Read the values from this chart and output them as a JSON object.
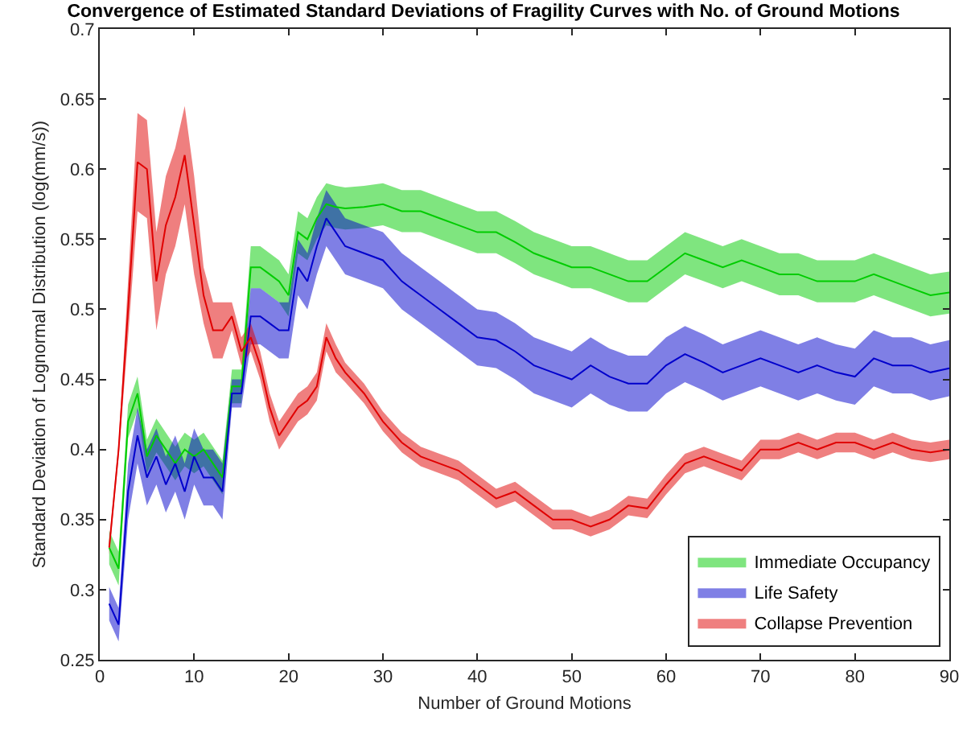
{
  "chart_data": {
    "type": "line",
    "title": "Convergence of Estimated Standard Deviations of Fragility Curves with No. of Ground Motions",
    "xlabel": "Number of Ground Motions",
    "ylabel": "Standard Deviation of Lognormal Distribution (log(mm/s))",
    "x": [
      1,
      2,
      3,
      4,
      5,
      6,
      7,
      8,
      9,
      10,
      11,
      12,
      13,
      14,
      15,
      16,
      17,
      18,
      19,
      20,
      21,
      22,
      23,
      24,
      25,
      26,
      28,
      30,
      32,
      34,
      36,
      38,
      40,
      42,
      44,
      46,
      48,
      50,
      52,
      54,
      56,
      58,
      60,
      62,
      64,
      66,
      68,
      70,
      72,
      74,
      76,
      78,
      80,
      82,
      84,
      86,
      88,
      90
    ],
    "xlim": [
      0,
      90
    ],
    "xticks": [
      0,
      10,
      20,
      30,
      40,
      50,
      60,
      70,
      80,
      90
    ],
    "ylim": [
      0.25,
      0.7
    ],
    "yticks": [
      0.25,
      0.3,
      0.35,
      0.4,
      0.45,
      0.5,
      0.55,
      0.6,
      0.65,
      0.7
    ],
    "grid": false,
    "legend": "bottom right",
    "series": [
      {
        "name": "Immediate Occupancy",
        "color": "#00cc00",
        "values": [
          0.33,
          0.315,
          0.42,
          0.44,
          0.395,
          0.41,
          0.4,
          0.39,
          0.4,
          0.395,
          0.4,
          0.39,
          0.38,
          0.445,
          0.445,
          0.53,
          0.53,
          0.525,
          0.52,
          0.51,
          0.555,
          0.55,
          0.565,
          0.575,
          0.573,
          0.572,
          0.573,
          0.575,
          0.57,
          0.57,
          0.565,
          0.56,
          0.555,
          0.555,
          0.548,
          0.54,
          0.535,
          0.53,
          0.53,
          0.525,
          0.52,
          0.52,
          0.53,
          0.54,
          0.535,
          0.53,
          0.535,
          0.53,
          0.525,
          0.525,
          0.52,
          0.52,
          0.52,
          0.525,
          0.52,
          0.515,
          0.51,
          0.512
        ],
        "lower": [
          0.318,
          0.303,
          0.408,
          0.428,
          0.383,
          0.398,
          0.388,
          0.378,
          0.388,
          0.383,
          0.388,
          0.378,
          0.368,
          0.433,
          0.433,
          0.515,
          0.515,
          0.51,
          0.505,
          0.495,
          0.54,
          0.535,
          0.55,
          0.56,
          0.558,
          0.557,
          0.558,
          0.56,
          0.555,
          0.555,
          0.55,
          0.545,
          0.54,
          0.54,
          0.533,
          0.525,
          0.52,
          0.515,
          0.515,
          0.51,
          0.505,
          0.505,
          0.515,
          0.525,
          0.52,
          0.515,
          0.52,
          0.515,
          0.51,
          0.51,
          0.505,
          0.505,
          0.505,
          0.51,
          0.505,
          0.5,
          0.495,
          0.497
        ],
        "upper": [
          0.342,
          0.327,
          0.432,
          0.452,
          0.407,
          0.422,
          0.412,
          0.402,
          0.412,
          0.407,
          0.412,
          0.402,
          0.392,
          0.457,
          0.457,
          0.545,
          0.545,
          0.54,
          0.535,
          0.525,
          0.57,
          0.565,
          0.58,
          0.59,
          0.588,
          0.587,
          0.588,
          0.59,
          0.585,
          0.585,
          0.58,
          0.575,
          0.57,
          0.57,
          0.563,
          0.555,
          0.55,
          0.545,
          0.545,
          0.54,
          0.535,
          0.535,
          0.545,
          0.555,
          0.55,
          0.545,
          0.55,
          0.545,
          0.54,
          0.54,
          0.535,
          0.535,
          0.535,
          0.54,
          0.535,
          0.53,
          0.525,
          0.527
        ]
      },
      {
        "name": "Life Safety",
        "color": "#0000cc",
        "values": [
          0.29,
          0.275,
          0.37,
          0.41,
          0.38,
          0.395,
          0.375,
          0.39,
          0.37,
          0.395,
          0.38,
          0.38,
          0.37,
          0.44,
          0.44,
          0.495,
          0.495,
          0.49,
          0.485,
          0.485,
          0.53,
          0.52,
          0.545,
          0.565,
          0.555,
          0.545,
          0.54,
          0.535,
          0.52,
          0.51,
          0.5,
          0.49,
          0.48,
          0.478,
          0.47,
          0.46,
          0.455,
          0.45,
          0.46,
          0.452,
          0.447,
          0.447,
          0.46,
          0.468,
          0.462,
          0.455,
          0.46,
          0.465,
          0.46,
          0.455,
          0.46,
          0.455,
          0.452,
          0.465,
          0.46,
          0.46,
          0.455,
          0.458
        ],
        "lower": [
          0.278,
          0.263,
          0.35,
          0.39,
          0.36,
          0.375,
          0.355,
          0.37,
          0.35,
          0.375,
          0.36,
          0.36,
          0.35,
          0.43,
          0.43,
          0.475,
          0.475,
          0.47,
          0.465,
          0.465,
          0.51,
          0.5,
          0.525,
          0.545,
          0.535,
          0.525,
          0.52,
          0.515,
          0.5,
          0.49,
          0.48,
          0.47,
          0.46,
          0.458,
          0.45,
          0.44,
          0.435,
          0.43,
          0.44,
          0.432,
          0.427,
          0.427,
          0.44,
          0.448,
          0.442,
          0.435,
          0.44,
          0.445,
          0.44,
          0.435,
          0.44,
          0.435,
          0.432,
          0.445,
          0.44,
          0.44,
          0.435,
          0.438
        ],
        "upper": [
          0.302,
          0.287,
          0.39,
          0.43,
          0.4,
          0.415,
          0.395,
          0.41,
          0.39,
          0.415,
          0.4,
          0.4,
          0.39,
          0.45,
          0.45,
          0.515,
          0.515,
          0.51,
          0.505,
          0.505,
          0.55,
          0.54,
          0.565,
          0.585,
          0.575,
          0.565,
          0.56,
          0.555,
          0.54,
          0.53,
          0.52,
          0.51,
          0.5,
          0.498,
          0.49,
          0.48,
          0.475,
          0.47,
          0.48,
          0.472,
          0.467,
          0.467,
          0.48,
          0.488,
          0.482,
          0.475,
          0.48,
          0.485,
          0.48,
          0.475,
          0.48,
          0.475,
          0.472,
          0.485,
          0.48,
          0.48,
          0.475,
          0.478
        ]
      },
      {
        "name": "Collapse Prevention",
        "color": "#e00000",
        "values": [
          0.33,
          0.4,
          0.5,
          0.605,
          0.6,
          0.52,
          0.56,
          0.58,
          0.61,
          0.56,
          0.51,
          0.485,
          0.485,
          0.495,
          0.47,
          0.48,
          0.46,
          0.43,
          0.41,
          0.42,
          0.43,
          0.435,
          0.445,
          0.48,
          0.465,
          0.455,
          0.44,
          0.42,
          0.405,
          0.395,
          0.39,
          0.385,
          0.375,
          0.365,
          0.37,
          0.36,
          0.35,
          0.35,
          0.345,
          0.35,
          0.36,
          0.358,
          0.375,
          0.39,
          0.395,
          0.39,
          0.385,
          0.4,
          0.4,
          0.405,
          0.4,
          0.405,
          0.405,
          0.4,
          0.405,
          0.4,
          0.398,
          0.4
        ],
        "lower": [
          0.325,
          0.395,
          0.48,
          0.57,
          0.565,
          0.485,
          0.525,
          0.545,
          0.575,
          0.525,
          0.49,
          0.465,
          0.465,
          0.485,
          0.46,
          0.47,
          0.45,
          0.42,
          0.4,
          0.41,
          0.42,
          0.425,
          0.435,
          0.47,
          0.455,
          0.448,
          0.433,
          0.413,
          0.398,
          0.388,
          0.383,
          0.378,
          0.368,
          0.358,
          0.363,
          0.353,
          0.343,
          0.343,
          0.338,
          0.343,
          0.353,
          0.351,
          0.368,
          0.383,
          0.388,
          0.383,
          0.378,
          0.393,
          0.393,
          0.398,
          0.393,
          0.398,
          0.398,
          0.393,
          0.398,
          0.393,
          0.391,
          0.393
        ],
        "upper": [
          0.335,
          0.405,
          0.52,
          0.64,
          0.635,
          0.555,
          0.595,
          0.615,
          0.645,
          0.595,
          0.53,
          0.505,
          0.505,
          0.505,
          0.48,
          0.49,
          0.47,
          0.44,
          0.42,
          0.43,
          0.44,
          0.445,
          0.455,
          0.49,
          0.475,
          0.462,
          0.447,
          0.427,
          0.412,
          0.402,
          0.397,
          0.392,
          0.382,
          0.372,
          0.377,
          0.367,
          0.357,
          0.357,
          0.352,
          0.357,
          0.367,
          0.365,
          0.382,
          0.397,
          0.402,
          0.397,
          0.392,
          0.407,
          0.407,
          0.412,
          0.407,
          0.412,
          0.412,
          0.407,
          0.412,
          0.407,
          0.405,
          0.407
        ]
      }
    ]
  }
}
